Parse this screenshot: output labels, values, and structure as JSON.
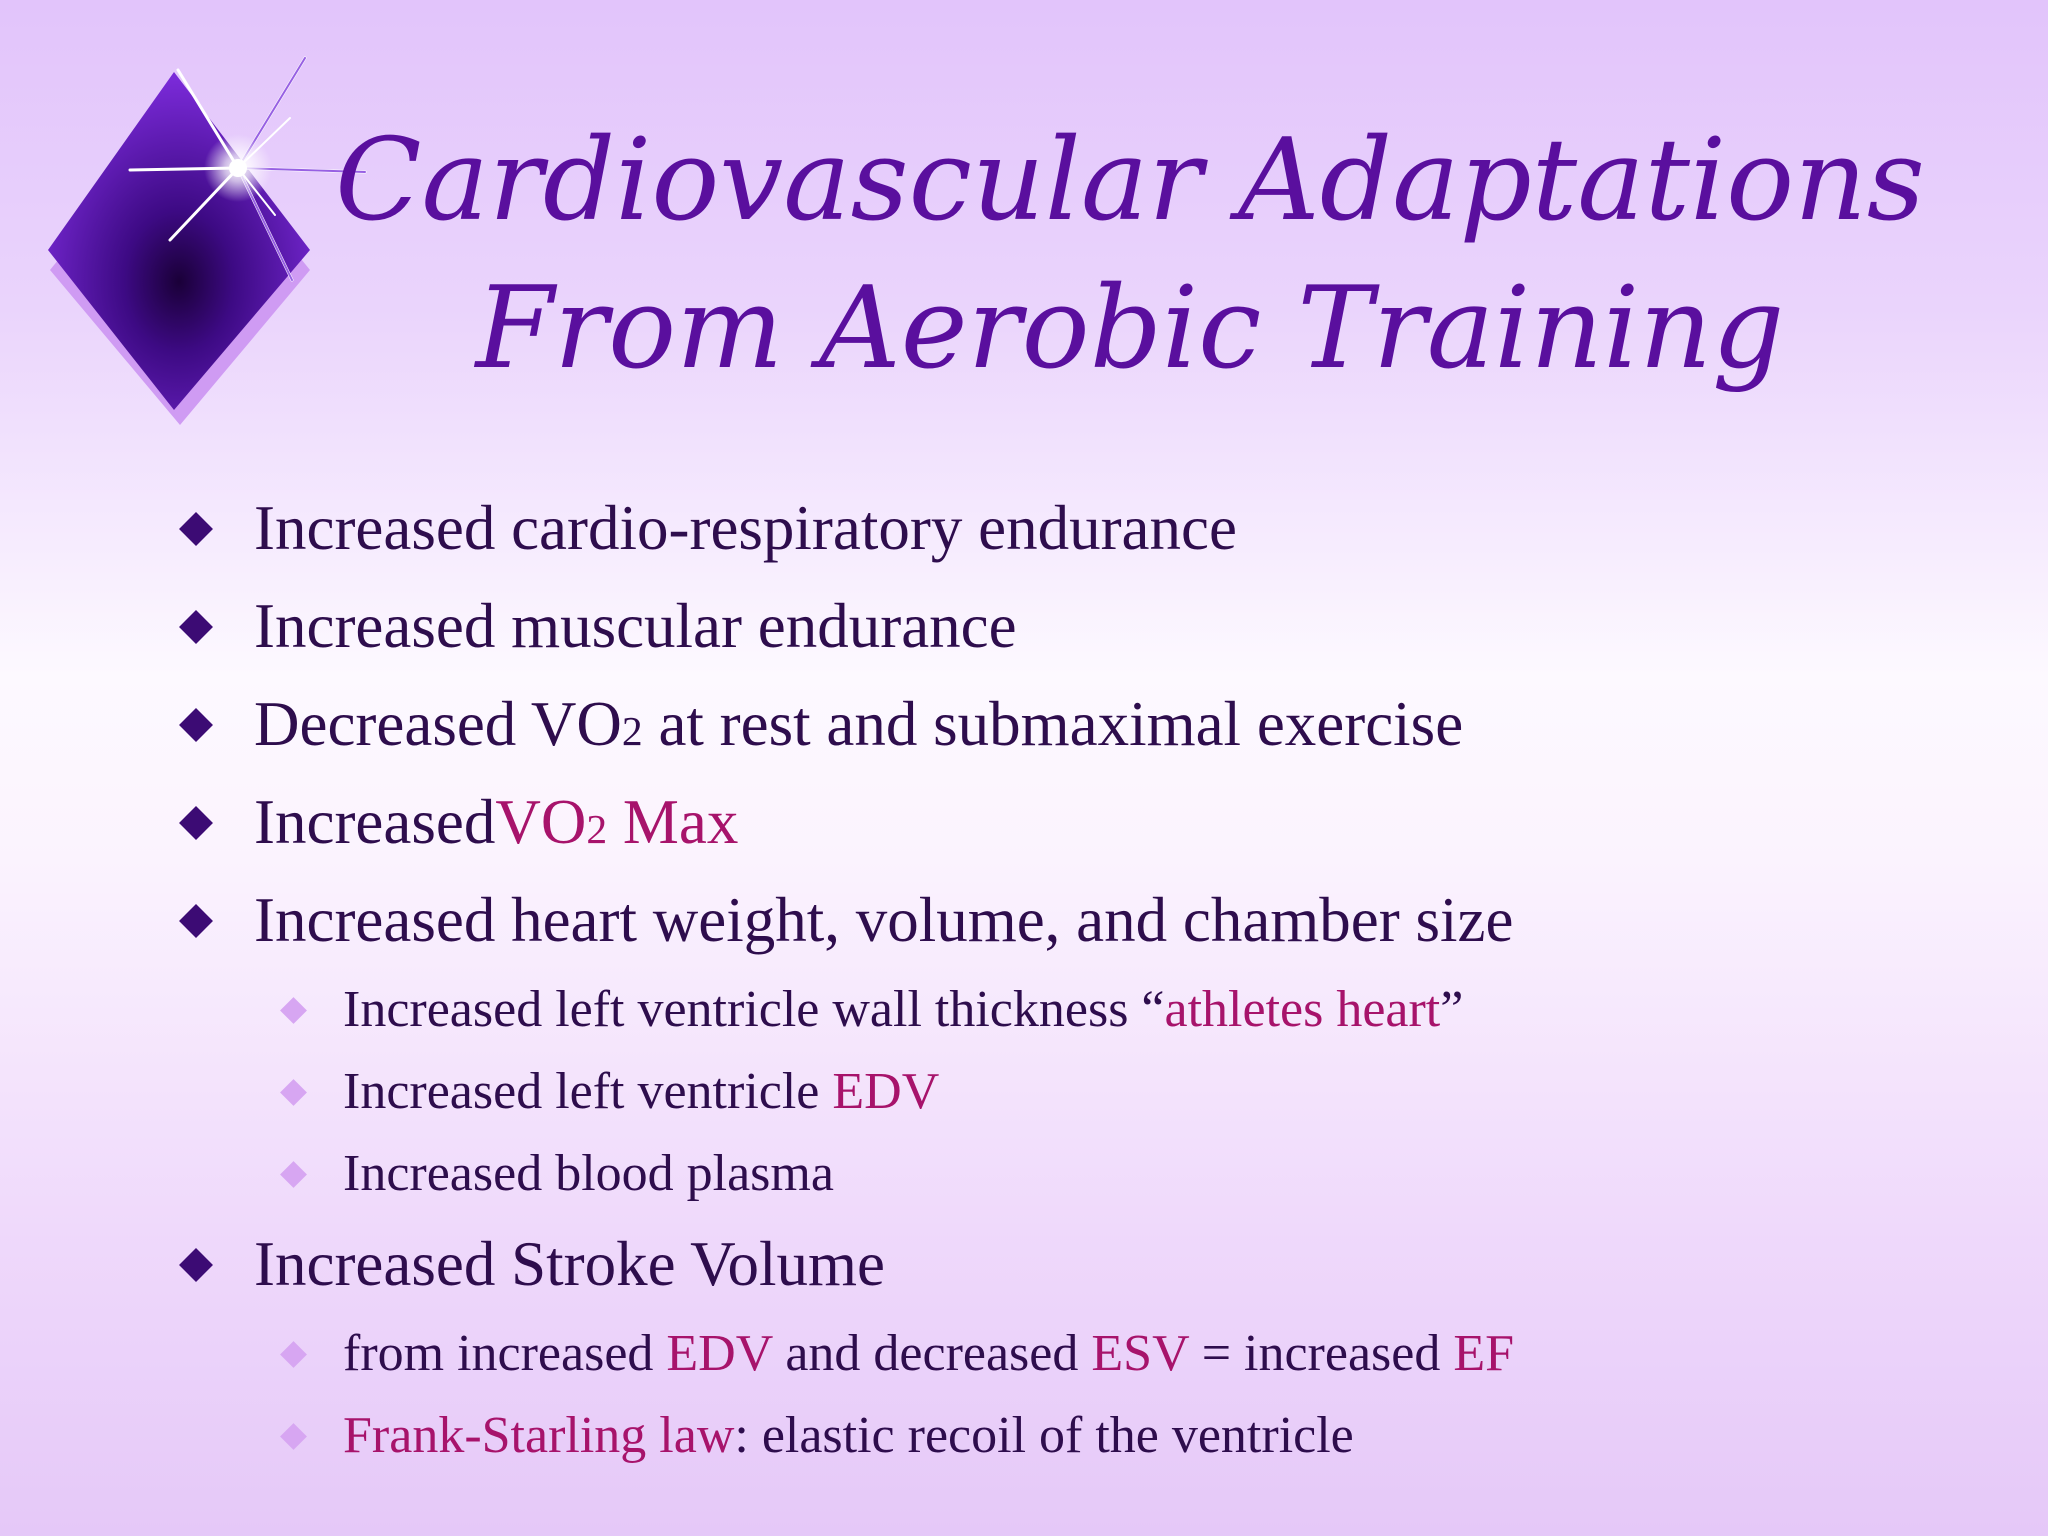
{
  "title": {
    "line1": "Cardiovascular Adaptations",
    "line2": "From Aerobic Training"
  },
  "bullets": [
    {
      "level": 1,
      "text": "Increased cardio-respiratory endurance"
    },
    {
      "level": 1,
      "text": "Increased muscular endurance"
    },
    {
      "level": 1,
      "pre": "Decreased VO",
      "sub": "2",
      "post": " at rest and submaximal exercise"
    },
    {
      "level": 1,
      "pre": "Increased",
      "hl_pre": "VO",
      "hl_sub": "2",
      "hl_post": " Max"
    },
    {
      "level": 1,
      "text": "Increased heart weight, volume, and chamber size"
    },
    {
      "level": 2,
      "pre": "Increased left ventricle wall thickness “",
      "hl": "athletes heart",
      "post": "”"
    },
    {
      "level": 2,
      "pre": "Increased left ventricle ",
      "hl": "EDV"
    },
    {
      "level": 2,
      "text": "Increased blood plasma"
    },
    {
      "level": 1,
      "text": "Increased Stroke Volume"
    },
    {
      "level": 2,
      "pre": "from increased ",
      "hl1": "EDV",
      "mid1": " and decreased ",
      "hl2": "ESV",
      "mid2": " = increased ",
      "hl3": "EF"
    },
    {
      "level": 2,
      "hl": "Frank-Starling law",
      "post": ": elastic recoil of the ventricle"
    }
  ],
  "colors": {
    "title": "#5a0f9e",
    "text": "#2e0d4d",
    "highlight": "#a7136b",
    "bullet_l1": "#3c0b74",
    "bullet_l2": "#d7a6f2"
  }
}
